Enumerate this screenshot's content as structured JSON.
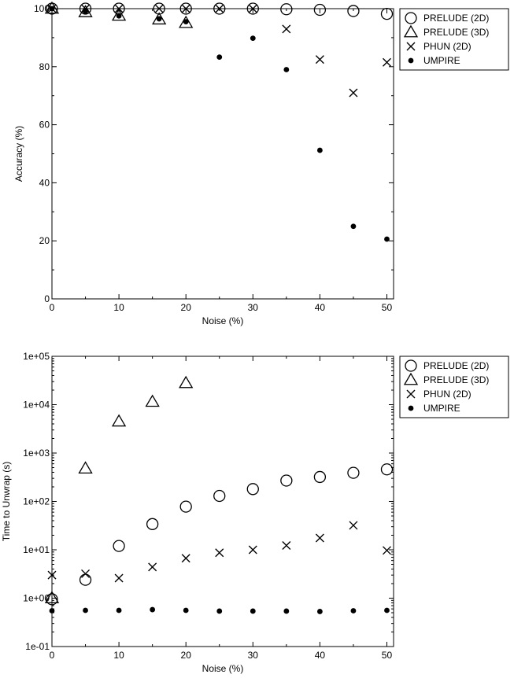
{
  "chart_data": [
    {
      "type": "scatter",
      "xlabel": "Noise (%)",
      "ylabel": "Accuracy (%)",
      "xlim": [
        0,
        51
      ],
      "ylim": [
        0,
        100
      ],
      "yscale": "linear",
      "x_ticks": [
        0,
        10,
        20,
        30,
        40,
        50
      ],
      "x_tick_labels": [
        "0",
        "10",
        "20",
        "30",
        "40",
        "50"
      ],
      "y_ticks": [
        0,
        20,
        40,
        60,
        80,
        100
      ],
      "y_tick_labels": [
        "0",
        "20",
        "40",
        "60",
        "80",
        "100"
      ],
      "legend_position": "outside-right-top",
      "series": [
        {
          "name": "PRELUDE (2D)",
          "marker": "circle",
          "x": [
            0,
            5,
            10,
            16,
            20,
            25,
            30,
            35,
            40,
            45,
            50
          ],
          "y": [
            100,
            100,
            100,
            100,
            100,
            100,
            100,
            99.8,
            99.6,
            99.2,
            98.2
          ]
        },
        {
          "name": "PRELUDE (3D)",
          "marker": "triangle",
          "x": [
            0,
            5,
            10,
            16,
            20
          ],
          "y": [
            100,
            98.8,
            97.6,
            96.3,
            95.1
          ]
        },
        {
          "name": "PHUN (2D)",
          "marker": "x",
          "x": [
            0,
            5,
            10,
            16,
            20,
            25,
            30,
            35,
            40,
            45,
            50
          ],
          "y": [
            100,
            100,
            100,
            100,
            100,
            100,
            100,
            93,
            82.5,
            71,
            81.5
          ]
        },
        {
          "name": "UMPIRE",
          "marker": "dot",
          "x": [
            0,
            5,
            10,
            16,
            20,
            25,
            30,
            35,
            40,
            45,
            50
          ],
          "y": [
            100,
            99,
            97.5,
            96.5,
            95.5,
            83.3,
            89.8,
            79,
            51.2,
            25,
            20.6
          ]
        }
      ]
    },
    {
      "type": "scatter",
      "xlabel": "Noise (%)",
      "ylabel": "Time to Unwrap (s)",
      "xlim": [
        0,
        51
      ],
      "ylim": [
        0.1,
        100000
      ],
      "yscale": "log",
      "x_ticks": [
        0,
        10,
        20,
        30,
        40,
        50
      ],
      "x_tick_labels": [
        "0",
        "10",
        "20",
        "30",
        "40",
        "50"
      ],
      "y_ticks": [
        0.1,
        1,
        10,
        100,
        1000,
        10000,
        100000
      ],
      "y_tick_labels": [
        "1e-01",
        "1e+00",
        "1e+01",
        "1e+02",
        "1e+03",
        "1e+04",
        "1e+05"
      ],
      "legend_position": "outside-right-top",
      "series": [
        {
          "name": "PRELUDE (2D)",
          "marker": "circle",
          "x": [
            0,
            5,
            10,
            15,
            20,
            25,
            30,
            35,
            40,
            45,
            50
          ],
          "y": [
            0.95,
            2.4,
            12,
            34,
            78,
            130,
            180,
            270,
            320,
            390,
            460
          ]
        },
        {
          "name": "PRELUDE (3D)",
          "marker": "triangle",
          "x": [
            0,
            5,
            10,
            15,
            20
          ],
          "y": [
            1.0,
            480,
            4500,
            11500,
            28000
          ]
        },
        {
          "name": "PHUN (2D)",
          "marker": "x",
          "x": [
            0,
            5,
            10,
            15,
            20,
            25,
            30,
            35,
            40,
            45,
            50
          ],
          "y": [
            3.0,
            3.2,
            2.6,
            4.4,
            6.7,
            8.7,
            10,
            12.3,
            17.5,
            32,
            9.7
          ]
        },
        {
          "name": "UMPIRE",
          "marker": "dot",
          "x": [
            0,
            5,
            10,
            15,
            20,
            25,
            30,
            35,
            40,
            45,
            50
          ],
          "y": [
            0.55,
            0.56,
            0.56,
            0.58,
            0.56,
            0.54,
            0.54,
            0.54,
            0.53,
            0.55,
            0.56
          ]
        }
      ]
    }
  ]
}
